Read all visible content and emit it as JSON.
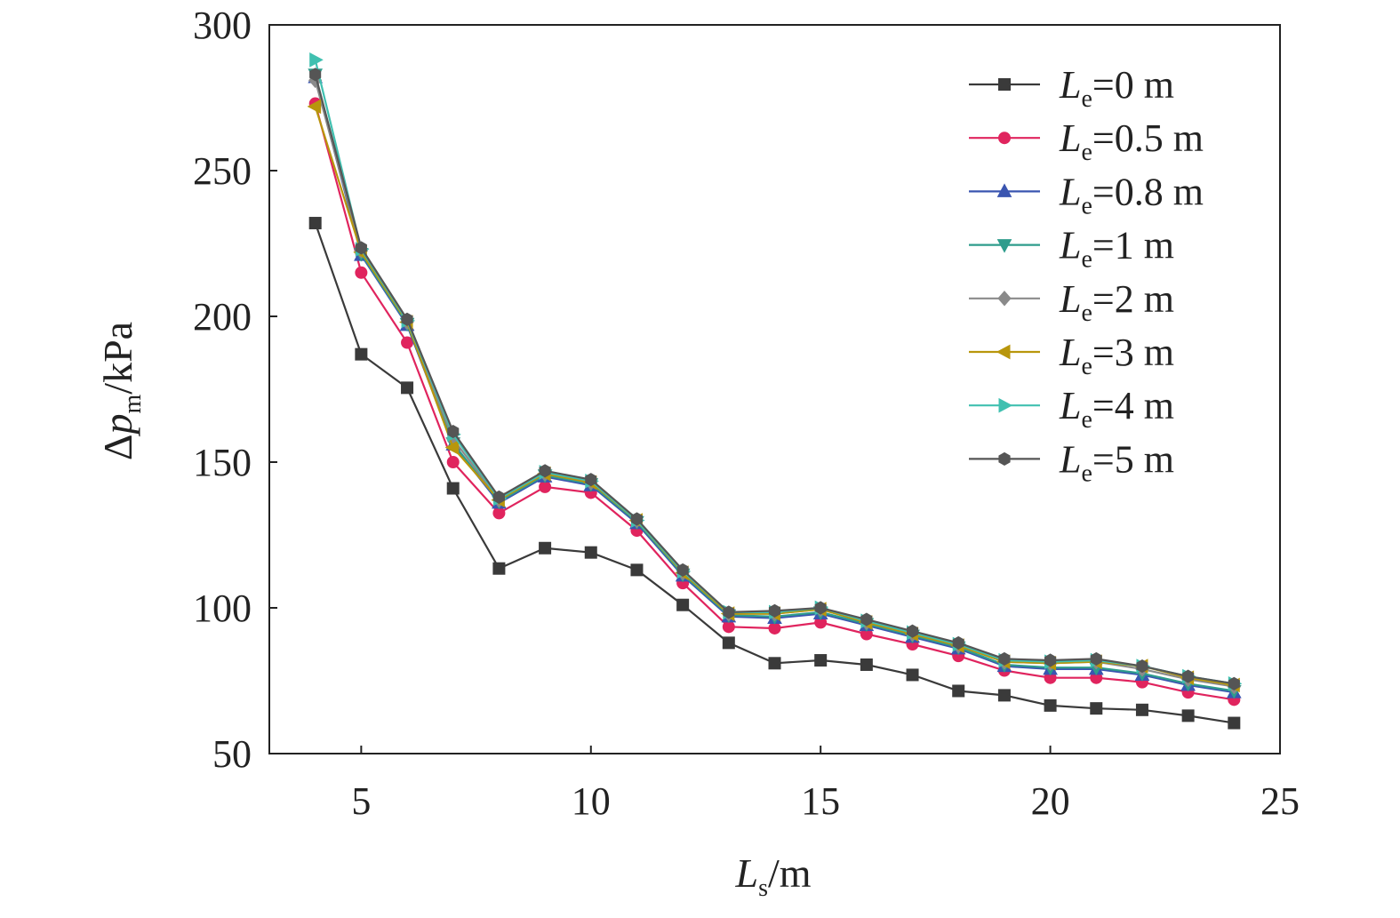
{
  "chart_data": {
    "type": "line",
    "xlabel": {
      "main": "L",
      "sub": "s",
      "unit": "/m"
    },
    "ylabel": {
      "prefix": "Δ",
      "main": "p",
      "sub": "m",
      "unit": "/kPa"
    },
    "xlim": [
      3,
      25
    ],
    "ylim": [
      50,
      300
    ],
    "xticks": [
      5,
      10,
      15,
      20,
      25
    ],
    "yticks": [
      50,
      100,
      150,
      200,
      250,
      300
    ],
    "grid": false,
    "legend_position": "top-right",
    "x": [
      4,
      5,
      6,
      7,
      8,
      9,
      10,
      11,
      12,
      13,
      14,
      15,
      16,
      17,
      18,
      19,
      20,
      21,
      22,
      23,
      24
    ],
    "series": [
      {
        "name": "0 m",
        "color": "#3a3a3a",
        "marker": "square",
        "values": [
          232,
          187,
          175.5,
          141,
          113.5,
          120.5,
          119,
          113,
          101,
          88,
          81,
          82,
          80.5,
          77,
          71.5,
          70,
          66.5,
          65.5,
          65,
          63,
          60.5
        ]
      },
      {
        "name": "0.5 m",
        "color": "#e0245e",
        "marker": "circle",
        "values": [
          273,
          215,
          191,
          150,
          132.5,
          141.5,
          139.5,
          126.5,
          108.5,
          93.5,
          93,
          95,
          91,
          87.5,
          83.5,
          78.5,
          76,
          76,
          74.5,
          71,
          68.5
        ]
      },
      {
        "name": "0.8 m",
        "color": "#3a55b0",
        "marker": "triangle-up",
        "values": [
          282,
          221,
          197,
          156,
          136,
          145,
          142,
          129,
          111,
          97,
          96.5,
          98,
          94,
          90,
          86,
          80,
          79,
          79,
          77,
          73.5,
          71
        ]
      },
      {
        "name": "1 m",
        "color": "#2e9c8c",
        "marker": "triangle-down",
        "values": [
          283,
          221.5,
          197.5,
          156.5,
          136.5,
          145.5,
          142.5,
          129.5,
          111.5,
          97.5,
          97,
          98.5,
          94.5,
          90.5,
          86.5,
          80.5,
          79.5,
          79.5,
          77.5,
          74,
          71.5
        ]
      },
      {
        "name": "2 m",
        "color": "#8a8a8a",
        "marker": "diamond",
        "values": [
          281,
          222.5,
          198,
          158,
          137,
          146,
          143,
          130,
          112,
          98,
          98,
          99.5,
          95,
          91,
          87,
          81.5,
          81,
          81.5,
          79,
          75.5,
          73
        ]
      },
      {
        "name": "3 m",
        "color": "#b8960c",
        "marker": "triangle-left",
        "values": [
          272,
          222,
          198,
          155,
          137,
          146,
          143,
          130,
          112,
          98,
          98,
          99.5,
          95,
          91,
          87,
          81.5,
          81,
          81.5,
          80,
          76,
          73.5
        ]
      },
      {
        "name": "4 m",
        "color": "#40c0b0",
        "marker": "triangle-right",
        "values": [
          288,
          223,
          198.5,
          159.5,
          137.5,
          146.5,
          143.5,
          130,
          112.5,
          98.5,
          98.5,
          100,
          95.5,
          91.5,
          87.5,
          82,
          81.5,
          82,
          80,
          76.5,
          74
        ]
      },
      {
        "name": "5 m",
        "color": "#555555",
        "marker": "hexagon",
        "values": [
          283,
          223.5,
          199,
          160.5,
          138,
          147,
          144,
          130.5,
          113,
          98.5,
          99,
          100,
          96,
          92,
          88,
          82.5,
          82,
          82.5,
          80,
          76.5,
          74
        ]
      }
    ],
    "legend_prefix": {
      "main": "L",
      "sub": "e",
      "eq": "="
    }
  }
}
